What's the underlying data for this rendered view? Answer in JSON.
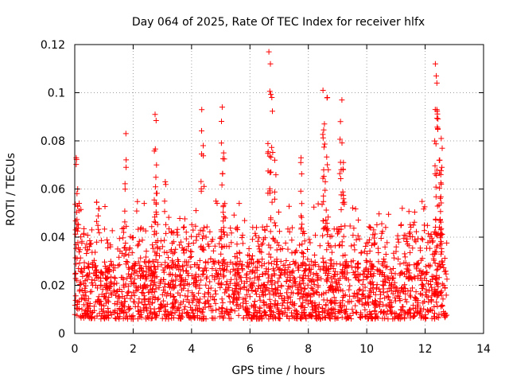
{
  "chart_data": {
    "type": "scatter",
    "title": "Day 064 of 2025, Rate Of TEC Index for receiver hlfx",
    "xlabel": "GPS time / hours",
    "ylabel": "ROTI / TECUs",
    "xlim": [
      0,
      14
    ],
    "ylim": [
      0,
      0.12
    ],
    "xticks": [
      0,
      2,
      4,
      6,
      8,
      10,
      12,
      14
    ],
    "xtick_labels": [
      "0",
      "2",
      "4",
      "6",
      "8",
      "10",
      "12",
      "14"
    ],
    "yticks": [
      0,
      0.02,
      0.04,
      0.06,
      0.08,
      0.1,
      0.12
    ],
    "ytick_labels": [
      "0",
      "0.02",
      "0.04",
      "0.06",
      "0.08",
      "0.1",
      "0.12"
    ],
    "grid": true,
    "marker": "+",
    "color": "#ff0000",
    "series": [
      {
        "name": "ROTI",
        "x_range": [
          0,
          12.75
        ],
        "baseline_band": [
          0.006,
          0.03
        ],
        "notable_peaks": [
          {
            "x": 0.05,
            "y": 0.073
          },
          {
            "x": 0.1,
            "y": 0.06
          },
          {
            "x": 1.75,
            "y": 0.083
          },
          {
            "x": 2.75,
            "y": 0.091
          },
          {
            "x": 2.8,
            "y": 0.07
          },
          {
            "x": 3.1,
            "y": 0.063
          },
          {
            "x": 4.35,
            "y": 0.093
          },
          {
            "x": 4.4,
            "y": 0.078
          },
          {
            "x": 5.05,
            "y": 0.094
          },
          {
            "x": 5.1,
            "y": 0.075
          },
          {
            "x": 6.65,
            "y": 0.117
          },
          {
            "x": 6.7,
            "y": 0.112
          },
          {
            "x": 6.75,
            "y": 0.098
          },
          {
            "x": 6.85,
            "y": 0.072
          },
          {
            "x": 7.75,
            "y": 0.073
          },
          {
            "x": 8.5,
            "y": 0.101
          },
          {
            "x": 8.65,
            "y": 0.098
          },
          {
            "x": 8.55,
            "y": 0.087
          },
          {
            "x": 9.15,
            "y": 0.097
          },
          {
            "x": 9.1,
            "y": 0.088
          },
          {
            "x": 9.2,
            "y": 0.071
          },
          {
            "x": 12.35,
            "y": 0.112
          },
          {
            "x": 12.4,
            "y": 0.104
          },
          {
            "x": 12.4,
            "y": 0.093
          },
          {
            "x": 12.55,
            "y": 0.081
          },
          {
            "x": 12.5,
            "y": 0.072
          },
          {
            "x": 12.55,
            "y": 0.062
          }
        ]
      }
    ]
  }
}
